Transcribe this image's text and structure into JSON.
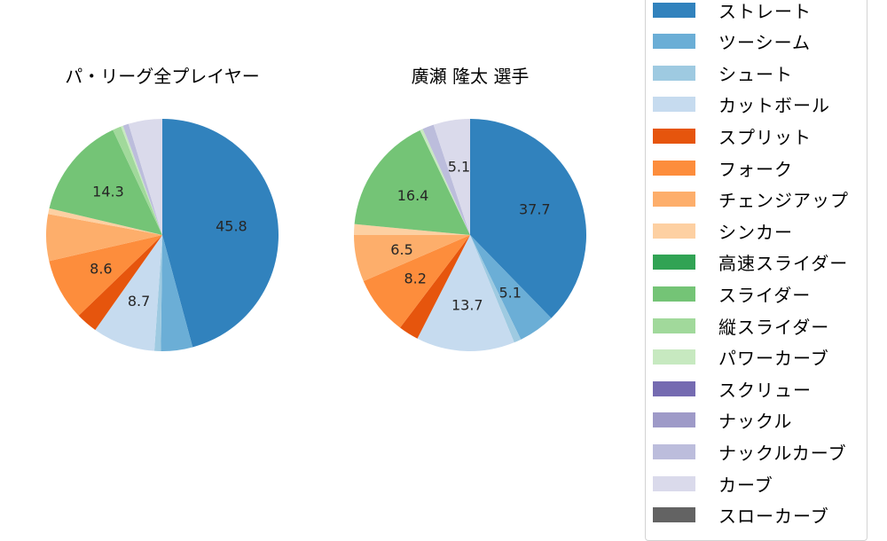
{
  "chart_data": [
    {
      "type": "pie",
      "title": "パ・リーグ全プレイヤー",
      "start_angle": 90,
      "direction": "clockwise",
      "categories": [
        "ストレート",
        "ツーシーム",
        "シュート",
        "カットボール",
        "スプリット",
        "フォーク",
        "チェンジアップ",
        "シンカー",
        "スライダー",
        "縦スライダー",
        "パワーカーブ",
        "ナックルカーブ",
        "カーブ"
      ],
      "values": [
        45.8,
        4.4,
        0.9,
        8.7,
        3.0,
        8.6,
        6.5,
        0.8,
        14.3,
        1.2,
        0.3,
        0.8,
        4.7
      ],
      "labels_shown": [
        "45.8",
        "",
        "",
        "8.7",
        "",
        "8.6",
        "",
        "",
        "14.3",
        "",
        "",
        "",
        ""
      ]
    },
    {
      "type": "pie",
      "title": "廣瀬 隆太  選手",
      "start_angle": 90,
      "direction": "clockwise",
      "categories": [
        "ストレート",
        "ツーシーム",
        "シュート",
        "カットボール",
        "スプリット",
        "フォーク",
        "チェンジアップ",
        "シンカー",
        "スライダー",
        "パワーカーブ",
        "ナックルカーブ",
        "カーブ"
      ],
      "values": [
        37.7,
        5.1,
        1.0,
        13.7,
        2.8,
        8.2,
        6.5,
        1.5,
        16.4,
        0.4,
        1.6,
        5.1
      ],
      "labels_shown": [
        "37.7",
        "5.1",
        "",
        "13.7",
        "",
        "8.2",
        "6.5",
        "",
        "16.4",
        "",
        "",
        "5.1"
      ]
    }
  ],
  "titles": {
    "left": "パ・リーグ全プレイヤー",
    "right": "廣瀬 隆太  選手"
  },
  "colors": {
    "ストレート": "#3182bd",
    "ツーシーム": "#6baed6",
    "シュート": "#9ecae1",
    "カットボール": "#c6dbef",
    "スプリット": "#e6550d",
    "フォーク": "#fd8d3c",
    "チェンジアップ": "#fdae6b",
    "シンカー": "#fdd0a2",
    "高速スライダー": "#31a354",
    "スライダー": "#74c476",
    "縦スライダー": "#a1d99b",
    "パワーカーブ": "#c7e9c0",
    "スクリュー": "#756bb1",
    "ナックル": "#9e9ac8",
    "ナックルカーブ": "#bcbddc",
    "カーブ": "#dadaeb",
    "スローカーブ": "#636363"
  },
  "legend": {
    "items": [
      {
        "label": "ストレート",
        "color": "#3182bd"
      },
      {
        "label": "ツーシーム",
        "color": "#6baed6"
      },
      {
        "label": "シュート",
        "color": "#9ecae1"
      },
      {
        "label": "カットボール",
        "color": "#c6dbef"
      },
      {
        "label": "スプリット",
        "color": "#e6550d"
      },
      {
        "label": "フォーク",
        "color": "#fd8d3c"
      },
      {
        "label": "チェンジアップ",
        "color": "#fdae6b"
      },
      {
        "label": "シンカー",
        "color": "#fdd0a2"
      },
      {
        "label": "高速スライダー",
        "color": "#31a354"
      },
      {
        "label": "スライダー",
        "color": "#74c476"
      },
      {
        "label": "縦スライダー",
        "color": "#a1d99b"
      },
      {
        "label": "パワーカーブ",
        "color": "#c7e9c0"
      },
      {
        "label": "スクリュー",
        "color": "#756bb1"
      },
      {
        "label": "ナックル",
        "color": "#9e9ac8"
      },
      {
        "label": "ナックルカーブ",
        "color": "#bcbddc"
      },
      {
        "label": "カーブ",
        "color": "#dadaeb"
      },
      {
        "label": "スローカーブ",
        "color": "#636363"
      }
    ]
  }
}
